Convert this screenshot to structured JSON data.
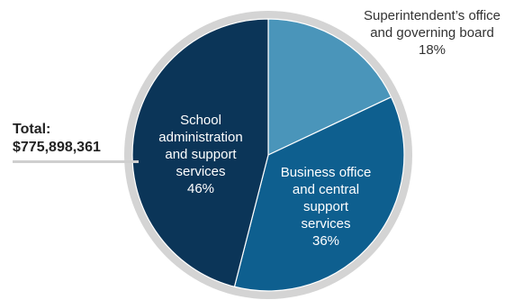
{
  "chart_data": {
    "type": "pie",
    "total_label": [
      "Total:",
      "$775,898,361"
    ],
    "slices": [
      {
        "label": [
          "Superintendent’s office",
          "and governing board"
        ],
        "percent_text": "18%",
        "value": 18,
        "color": "#4a95ba"
      },
      {
        "label": [
          "Business office",
          "and central",
          "support",
          "services"
        ],
        "percent_text": "36%",
        "value": 36,
        "color": "#0e5f8f"
      },
      {
        "label": [
          "School",
          "administration",
          "and support",
          "services"
        ],
        "percent_text": "46%",
        "value": 46,
        "color": "#0b3558"
      }
    ],
    "start_angle_deg": 0,
    "direction": "clockwise",
    "ring_color": "#d4d4d4"
  }
}
